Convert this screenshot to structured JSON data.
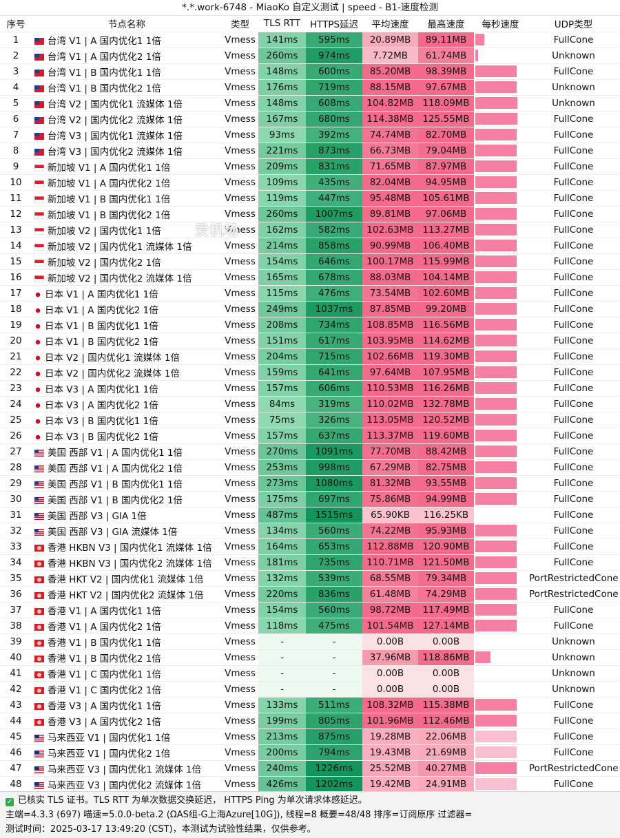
{
  "title": "*.*.work-6748 - MiaoKo 自定义测试 | speed - B1-速度检测",
  "columns": [
    "序号",
    "节点名称",
    "类型",
    "TLS RTT",
    "HTTPS延迟",
    "平均速度",
    "最高速度",
    "每秒速度",
    "UDP类型"
  ],
  "watermark": "爱机场",
  "colors": {
    "tls_gradient": [
      "#a9e8c2",
      "#12955a"
    ],
    "speed_gradient": [
      "#fbe0e4",
      "#f36a8a"
    ],
    "peak_bar": "#f4729a",
    "empty_cell": "#eef9f1"
  },
  "rows": [
    {
      "id": "1",
      "flag": "tw",
      "name": "台湾 V1 | A 国内优化1 1倍",
      "type": "Vmess",
      "rtt": "141ms",
      "https": "595ms",
      "avg": "20.89MB",
      "max": "89.11MB",
      "udp": "FullCone",
      "peak": 0.18
    },
    {
      "id": "2",
      "flag": "tw",
      "name": "台湾 V1 | A 国内优化2 1倍",
      "type": "Vmess",
      "rtt": "260ms",
      "https": "974ms",
      "avg": "7.72MB",
      "max": "61.74MB",
      "udp": "Unknown",
      "peak": 0.06
    },
    {
      "id": "3",
      "flag": "tw",
      "name": "台湾 V1 | B 国内优化1 1倍",
      "type": "Vmess",
      "rtt": "148ms",
      "https": "600ms",
      "avg": "85.20MB",
      "max": "98.39MB",
      "udp": "FullCone",
      "peak": 0.82
    },
    {
      "id": "4",
      "flag": "tw",
      "name": "台湾 V1 | B 国内优化2 1倍",
      "type": "Vmess",
      "rtt": "176ms",
      "https": "719ms",
      "avg": "88.15MB",
      "max": "97.67MB",
      "udp": "Unknown",
      "peak": 0.82
    },
    {
      "id": "5",
      "flag": "tw",
      "name": "台湾 V2 | 国内优化1 流媒体 1倍",
      "type": "Vmess",
      "rtt": "148ms",
      "https": "608ms",
      "avg": "104.82MB",
      "max": "118.09MB",
      "udp": "Unknown",
      "peak": 0.83
    },
    {
      "id": "6",
      "flag": "tw",
      "name": "台湾 V2 | 国内优化2 流媒体 1倍",
      "type": "Vmess",
      "rtt": "167ms",
      "https": "680ms",
      "avg": "114.38MB",
      "max": "125.55MB",
      "udp": "FullCone",
      "peak": 0.83
    },
    {
      "id": "7",
      "flag": "tw",
      "name": "台湾 V3 | 国内优化1 流媒体 1倍",
      "type": "Vmess",
      "rtt": "93ms",
      "https": "392ms",
      "avg": "74.74MB",
      "max": "82.70MB",
      "udp": "FullCone",
      "peak": 0.82
    },
    {
      "id": "8",
      "flag": "tw",
      "name": "台湾 V3 | 国内优化2 流媒体 1倍",
      "type": "Vmess",
      "rtt": "221ms",
      "https": "873ms",
      "avg": "66.73MB",
      "max": "79.04MB",
      "udp": "FullCone",
      "peak": 0.82
    },
    {
      "id": "9",
      "flag": "sg",
      "name": "新加坡 V1 | A 国内优化1 1倍",
      "type": "Vmess",
      "rtt": "209ms",
      "https": "831ms",
      "avg": "71.65MB",
      "max": "87.97MB",
      "udp": "FullCone",
      "peak": 0.82
    },
    {
      "id": "10",
      "flag": "sg",
      "name": "新加坡 V1 | A 国内优化2 1倍",
      "type": "Vmess",
      "rtt": "109ms",
      "https": "435ms",
      "avg": "82.04MB",
      "max": "94.95MB",
      "udp": "FullCone",
      "peak": 0.82
    },
    {
      "id": "11",
      "flag": "sg",
      "name": "新加坡 V1 | B 国内优化1 1倍",
      "type": "Vmess",
      "rtt": "119ms",
      "https": "447ms",
      "avg": "95.48MB",
      "max": "105.61MB",
      "udp": "FullCone",
      "peak": 0.82
    },
    {
      "id": "12",
      "flag": "sg",
      "name": "新加坡 V1 | B 国内优化2 1倍",
      "type": "Vmess",
      "rtt": "260ms",
      "https": "1007ms",
      "avg": "89.81MB",
      "max": "97.06MB",
      "udp": "FullCone",
      "peak": 0.82
    },
    {
      "id": "13",
      "flag": "sg",
      "name": "新加坡 V2 | 国内优化1 1倍",
      "type": "Vmess",
      "rtt": "162ms",
      "https": "582ms",
      "avg": "102.63MB",
      "max": "113.27MB",
      "udp": "FullCone",
      "peak": 0.82
    },
    {
      "id": "14",
      "flag": "sg",
      "name": "新加坡 V2 | 国内优化1 流媒体 1倍",
      "type": "Vmess",
      "rtt": "214ms",
      "https": "858ms",
      "avg": "90.99MB",
      "max": "106.40MB",
      "udp": "FullCone",
      "peak": 0.82
    },
    {
      "id": "15",
      "flag": "sg",
      "name": "新加坡 V2 | 国内优化2 1倍",
      "type": "Vmess",
      "rtt": "154ms",
      "https": "646ms",
      "avg": "100.17MB",
      "max": "115.99MB",
      "udp": "FullCone",
      "peak": 0.82
    },
    {
      "id": "16",
      "flag": "sg",
      "name": "新加坡 V2 | 国内优化2 流媒体 1倍",
      "type": "Vmess",
      "rtt": "165ms",
      "https": "678ms",
      "avg": "88.03MB",
      "max": "104.14MB",
      "udp": "FullCone",
      "peak": 0.82
    },
    {
      "id": "17",
      "flag": "jp",
      "name": "日本 V1 | A 国内优化1 1倍",
      "type": "Vmess",
      "rtt": "115ms",
      "https": "476ms",
      "avg": "73.54MB",
      "max": "102.60MB",
      "udp": "FullCone",
      "peak": 0.82
    },
    {
      "id": "18",
      "flag": "jp",
      "name": "日本 V1 | A 国内优化2 1倍",
      "type": "Vmess",
      "rtt": "249ms",
      "https": "1037ms",
      "avg": "87.85MB",
      "max": "99.20MB",
      "udp": "FullCone",
      "peak": 0.82
    },
    {
      "id": "19",
      "flag": "jp",
      "name": "日本 V1 | B 国内优化1 1倍",
      "type": "Vmess",
      "rtt": "208ms",
      "https": "734ms",
      "avg": "108.85MB",
      "max": "116.56MB",
      "udp": "FullCone",
      "peak": 0.82
    },
    {
      "id": "20",
      "flag": "jp",
      "name": "日本 V1 | B 国内优化2 1倍",
      "type": "Vmess",
      "rtt": "151ms",
      "https": "617ms",
      "avg": "103.95MB",
      "max": "114.62MB",
      "udp": "FullCone",
      "peak": 0.82
    },
    {
      "id": "21",
      "flag": "jp",
      "name": "日本 V2 | 国内优化1 流媒体 1倍",
      "type": "Vmess",
      "rtt": "204ms",
      "https": "715ms",
      "avg": "102.66MB",
      "max": "119.30MB",
      "udp": "FullCone",
      "peak": 0.82
    },
    {
      "id": "22",
      "flag": "jp",
      "name": "日本 V2 | 国内优化2 流媒体 1倍",
      "type": "Vmess",
      "rtt": "159ms",
      "https": "641ms",
      "avg": "97.64MB",
      "max": "107.95MB",
      "udp": "FullCone",
      "peak": 0.82
    },
    {
      "id": "23",
      "flag": "jp",
      "name": "日本 V3 | A 国内优化1 1倍",
      "type": "Vmess",
      "rtt": "157ms",
      "https": "606ms",
      "avg": "110.53MB",
      "max": "116.26MB",
      "udp": "FullCone",
      "peak": 0.82
    },
    {
      "id": "24",
      "flag": "jp",
      "name": "日本 V3 | A 国内优化2 1倍",
      "type": "Vmess",
      "rtt": "84ms",
      "https": "319ms",
      "avg": "110.02MB",
      "max": "132.78MB",
      "udp": "FullCone",
      "peak": 0.82
    },
    {
      "id": "25",
      "flag": "jp",
      "name": "日本 V3 | B 国内优化1 1倍",
      "type": "Vmess",
      "rtt": "75ms",
      "https": "326ms",
      "avg": "113.05MB",
      "max": "120.52MB",
      "udp": "FullCone",
      "peak": 0.82
    },
    {
      "id": "26",
      "flag": "jp",
      "name": "日本 V3 | B 国内优化2 1倍",
      "type": "Vmess",
      "rtt": "157ms",
      "https": "637ms",
      "avg": "113.37MB",
      "max": "119.60MB",
      "udp": "FullCone",
      "peak": 0.82
    },
    {
      "id": "27",
      "flag": "us",
      "name": "美国 西部 V1 | A 国内优化1 1倍",
      "type": "Vmess",
      "rtt": "270ms",
      "https": "1091ms",
      "avg": "77.70MB",
      "max": "88.42MB",
      "udp": "FullCone",
      "peak": 0.82
    },
    {
      "id": "28",
      "flag": "us",
      "name": "美国 西部 V1 | A 国内优化2 1倍",
      "type": "Vmess",
      "rtt": "253ms",
      "https": "998ms",
      "avg": "67.29MB",
      "max": "82.75MB",
      "udp": "FullCone",
      "peak": 0.82
    },
    {
      "id": "29",
      "flag": "us",
      "name": "美国 西部 V1 | B 国内优化1 1倍",
      "type": "Vmess",
      "rtt": "273ms",
      "https": "1080ms",
      "avg": "81.32MB",
      "max": "93.55MB",
      "udp": "FullCone",
      "peak": 0.82
    },
    {
      "id": "30",
      "flag": "us",
      "name": "美国 西部 V1 | B 国内优化2 1倍",
      "type": "Vmess",
      "rtt": "175ms",
      "https": "697ms",
      "avg": "75.86MB",
      "max": "94.99MB",
      "udp": "FullCone",
      "peak": 0.82
    },
    {
      "id": "31",
      "flag": "us",
      "name": "美国 西部 V3 | GIA 1倍",
      "type": "Vmess",
      "rtt": "487ms",
      "https": "1515ms",
      "avg": "65.90KB",
      "max": "116.25KB",
      "udp": "FullCone",
      "peak": 0.0
    },
    {
      "id": "32",
      "flag": "us",
      "name": "美国 西部 V3 | GIA 流媒体 1倍",
      "type": "Vmess",
      "rtt": "134ms",
      "https": "560ms",
      "avg": "74.22MB",
      "max": "95.93MB",
      "udp": "FullCone",
      "peak": 0.82
    },
    {
      "id": "33",
      "flag": "hk",
      "name": "香港 HKBN V3 | 国内优化1 流媒体 1倍",
      "type": "Vmess",
      "rtt": "164ms",
      "https": "653ms",
      "avg": "112.88MB",
      "max": "120.90MB",
      "udp": "FullCone",
      "peak": 0.82
    },
    {
      "id": "34",
      "flag": "hk",
      "name": "香港 HKBN V3 | 国内优化2 流媒体 1倍",
      "type": "Vmess",
      "rtt": "181ms",
      "https": "735ms",
      "avg": "110.71MB",
      "max": "121.50MB",
      "udp": "FullCone",
      "peak": 0.82
    },
    {
      "id": "35",
      "flag": "hk",
      "name": "香港 HKT V2 | 国内优化1 流媒体 1倍",
      "type": "Vmess",
      "rtt": "132ms",
      "https": "539ms",
      "avg": "68.55MB",
      "max": "79.34MB",
      "udp": "PortRestrictedCone",
      "peak": 0.82
    },
    {
      "id": "36",
      "flag": "hk",
      "name": "香港 HKT V2 | 国内优化2 流媒体 1倍",
      "type": "Vmess",
      "rtt": "220ms",
      "https": "836ms",
      "avg": "61.48MB",
      "max": "74.29MB",
      "udp": "PortRestrictedCone",
      "peak": 0.82
    },
    {
      "id": "37",
      "flag": "hk",
      "name": "香港 V1 | A 国内优化1 1倍",
      "type": "Vmess",
      "rtt": "154ms",
      "https": "560ms",
      "avg": "98.72MB",
      "max": "117.49MB",
      "udp": "FullCone",
      "peak": 0.82
    },
    {
      "id": "38",
      "flag": "hk",
      "name": "香港 V1 | A 国内优化2 1倍",
      "type": "Vmess",
      "rtt": "118ms",
      "https": "475ms",
      "avg": "101.54MB",
      "max": "127.14MB",
      "udp": "FullCone",
      "peak": 0.82
    },
    {
      "id": "39",
      "flag": "hk",
      "name": "香港 V1 | B 国内优化1 1倍",
      "type": "Vmess",
      "rtt": "-",
      "https": "-",
      "avg": "0.00B",
      "max": "0.00B",
      "udp": "Unknown",
      "peak": 0.0
    },
    {
      "id": "40",
      "flag": "hk",
      "name": "香港 V1 | B 国内优化2 1倍",
      "type": "Vmess",
      "rtt": "-",
      "https": "-",
      "avg": "37.96MB",
      "max": "118.86MB",
      "udp": "Unknown",
      "peak": 0.3
    },
    {
      "id": "41",
      "flag": "hk",
      "name": "香港 V1 | C 国内优化1 1倍",
      "type": "Vmess",
      "rtt": "-",
      "https": "-",
      "avg": "0.00B",
      "max": "0.00B",
      "udp": "Unknown",
      "peak": 0.0
    },
    {
      "id": "42",
      "flag": "hk",
      "name": "香港 V1 | C 国内优化2 1倍",
      "type": "Vmess",
      "rtt": "-",
      "https": "-",
      "avg": "0.00B",
      "max": "0.00B",
      "udp": "Unknown",
      "peak": 0.0
    },
    {
      "id": "43",
      "flag": "hk",
      "name": "香港 V3 | A 国内优化1 1倍",
      "type": "Vmess",
      "rtt": "133ms",
      "https": "511ms",
      "avg": "108.32MB",
      "max": "115.38MB",
      "udp": "FullCone",
      "peak": 0.82
    },
    {
      "id": "44",
      "flag": "hk",
      "name": "香港 V3 | A 国内优化2 1倍",
      "type": "Vmess",
      "rtt": "199ms",
      "https": "805ms",
      "avg": "101.96MB",
      "max": "112.46MB",
      "udp": "FullCone",
      "peak": 0.82
    },
    {
      "id": "45",
      "flag": "my",
      "name": "马来西亚 V1 | 国内优化1 1倍",
      "type": "Vmess",
      "rtt": "213ms",
      "https": "875ms",
      "avg": "19.28MB",
      "max": "22.06MB",
      "udp": "FullCone",
      "peak": 0.82
    },
    {
      "id": "46",
      "flag": "my",
      "name": "马来西亚 V1 | 国内优化2 1倍",
      "type": "Vmess",
      "rtt": "200ms",
      "https": "794ms",
      "avg": "19.43MB",
      "max": "21.69MB",
      "udp": "FullCone",
      "peak": 0.82
    },
    {
      "id": "47",
      "flag": "my",
      "name": "马来西亚 V3 | 国内优化1 流媒体 1倍",
      "type": "Vmess",
      "rtt": "240ms",
      "https": "1226ms",
      "avg": "25.52MB",
      "max": "40.27MB",
      "udp": "PortRestrictedCone",
      "peak": 0.82
    },
    {
      "id": "48",
      "flag": "my",
      "name": "马来西亚 V3 | 国内优化2 流媒体 1倍",
      "type": "Vmess",
      "rtt": "426ms",
      "https": "1202ms",
      "avg": "19.42MB",
      "max": "24.91MB",
      "udp": "FullCone",
      "peak": 0.82
    }
  ],
  "footer": {
    "line1": "已核实 TLS 证书。TLS RTT 为单次数据交换延迟， HTTPS Ping 为单次请求体感延迟。",
    "line2": "主端=4.3.3 (697) 喵速=5.0.0-beta.2 (ΩAS组-G上海Azure[10G]), 线程=8 概要=48/48 排序=订阅原序 过滤器=",
    "line3": "测试时间：2025-03-17 13:49:20 (CST)，本测试为试验性结果，仅供参考。"
  }
}
